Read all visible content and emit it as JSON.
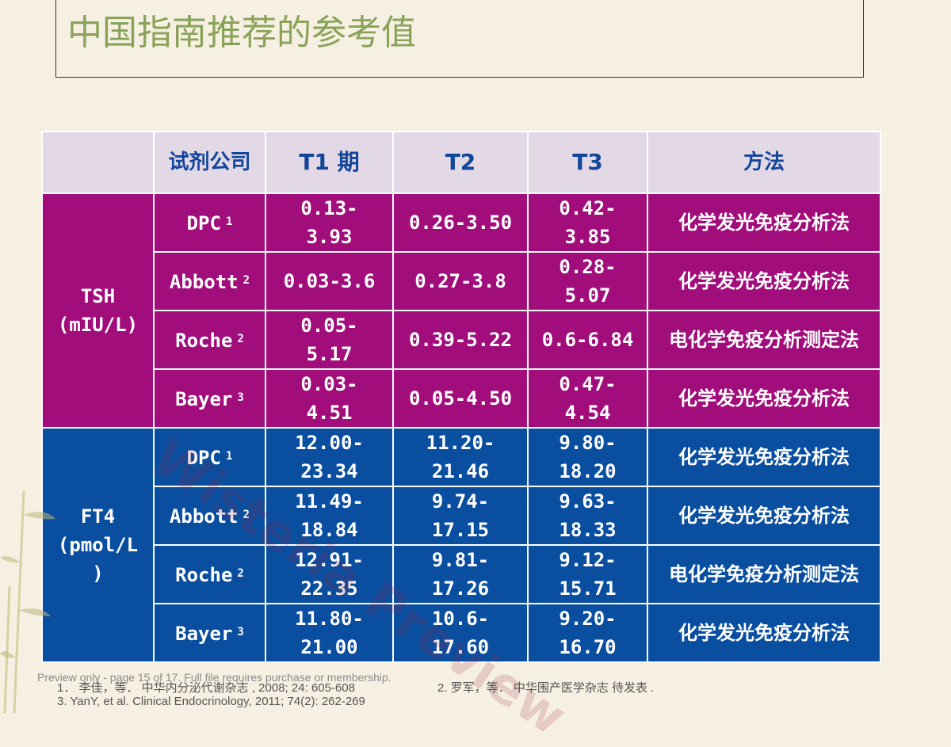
{
  "title": "中国指南推荐的参考值",
  "table": {
    "headers": [
      "",
      "试剂公司",
      "T1 期",
      "T2",
      "T3",
      "方法"
    ],
    "groups": [
      {
        "name": "TSH\n(mIU/L)",
        "rows": [
          {
            "company": "DPC",
            "ref": "1",
            "t1": "0.13-\n3.93",
            "t2": "0.26-3.50",
            "t3": "0.42-\n3.85",
            "method": "化学发光免疫分析法"
          },
          {
            "company": "Abbott",
            "ref": "2",
            "t1": "0.03-3.6",
            "t2": "0.27-3.8",
            "t3": "0.28-\n5.07",
            "method": "化学发光免疫分析法"
          },
          {
            "company": "Roche",
            "ref": "2",
            "t1": "0.05-\n5.17",
            "t2": "0.39-5.22",
            "t3": "0.6-6.84",
            "method": "电化学免疫分析测定法"
          },
          {
            "company": "Bayer",
            "ref": "3",
            "t1": "0.03-\n4.51",
            "t2": "0.05-4.50",
            "t3": "0.47-\n4.54",
            "method": "化学发光免疫分析法"
          }
        ]
      },
      {
        "name": "FT4\n(pmol/L\n)",
        "rows": [
          {
            "company": "DPC",
            "ref": "1",
            "t1": "12.00-\n23.34",
            "t2": "11.20-\n21.46",
            "t3": "9.80-\n18.20",
            "method": "化学发光免疫分析法"
          },
          {
            "company": "Abbott",
            "ref": "2",
            "t1": "11.49-\n18.84",
            "t2": "9.74-\n17.15",
            "t3": "9.63-\n18.33",
            "method": "化学发光免疫分析法"
          },
          {
            "company": "Roche",
            "ref": "2",
            "t1": "12.91-\n22.35",
            "t2": "9.81-\n17.26",
            "t3": "9.12-\n15.71",
            "method": "电化学免疫分析测定法"
          },
          {
            "company": "Bayer",
            "ref": "3",
            "t1": "11.80-\n21.00",
            "t2": "10.6-\n17.60",
            "t3": "9.20-\n16.70",
            "method": "化学发光免疫分析法"
          }
        ]
      }
    ]
  },
  "watermark": "Wisteria Preview",
  "preview_note": "Preview only - page 15 of 17. Full file requires purchase or membership.",
  "references": {
    "r1": "1． 李佳，等．  中华内分泌代谢杂志 , 2008; 24: 605-608",
    "r2": "2.   罗军，等．  中华围产医学杂志  待发表 .",
    "r3": "3.  YanY, et al.  Clinical Endocrinology, 2011; 74(2): 262-269"
  },
  "colors": {
    "background": "#f6f0e2",
    "title": "#8aa25a",
    "header_bg": "#e3d9e6",
    "header_text": "#11469a",
    "tsh_bg": "#a10d7a",
    "ft4_bg": "#0a4ea0"
  }
}
